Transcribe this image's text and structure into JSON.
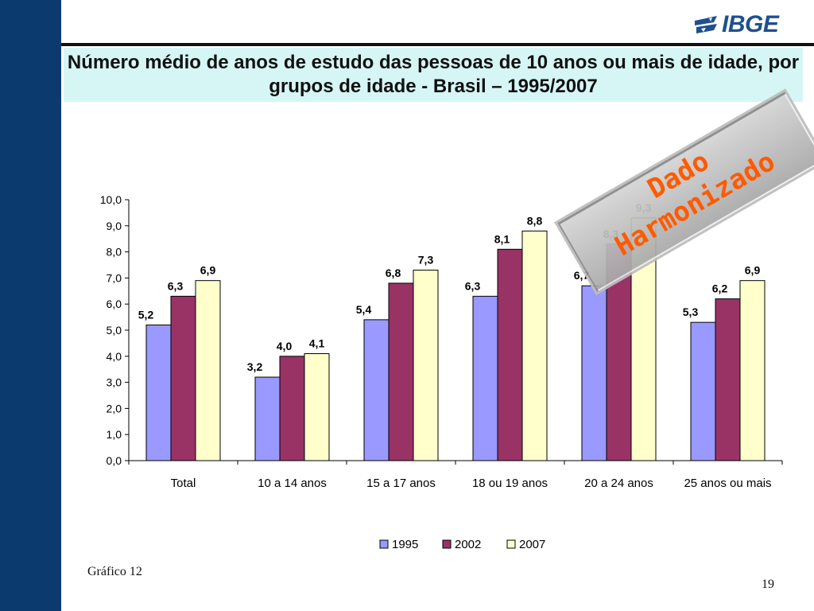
{
  "header": {
    "title": "Número médio de anos de estudo das pessoas de 10 anos ou mais de idade, por grupos de idade - Brasil – 1995/2007",
    "logo_text": "IBGE"
  },
  "footer": {
    "caption": "Gráfico 12",
    "page_number": "19"
  },
  "stamp": {
    "line1": "Dado",
    "line2": "Harmonizado"
  },
  "colors": {
    "sidebar": "#0b3a6e",
    "title_bg": "#d6f6f6",
    "series_1995": "#9999ff",
    "series_2002": "#993366",
    "series_2007": "#ffffcc",
    "stamp_text": "#ff5a00"
  },
  "chart_data": {
    "type": "bar",
    "title": "Número médio de anos de estudo das pessoas de 10 anos ou mais de idade, por grupos de idade - Brasil – 1995/2007",
    "xlabel": "",
    "ylabel": "",
    "ylim": [
      0,
      10
    ],
    "yticks": [
      "0,0",
      "1,0",
      "2,0",
      "3,0",
      "4,0",
      "5,0",
      "6,0",
      "7,0",
      "8,0",
      "9,0",
      "10,0"
    ],
    "categories": [
      "Total",
      "10 a 14 anos",
      "15 a 17 anos",
      "18 ou 19 anos",
      "20 a 24 anos",
      "25 anos ou mais"
    ],
    "series": [
      {
        "name": "1995",
        "color": "#9999ff",
        "values": [
          5.2,
          3.2,
          5.4,
          6.3,
          6.7,
          5.3
        ],
        "labels": [
          "5,2",
          "3,2",
          "5,4",
          "6,3",
          "6,7",
          "5,3"
        ]
      },
      {
        "name": "2002",
        "color": "#993366",
        "values": [
          6.3,
          4.0,
          6.8,
          8.1,
          8.3,
          6.2
        ],
        "labels": [
          "6,3",
          "4,0",
          "6,8",
          "8,1",
          "8,3",
          "6,2"
        ]
      },
      {
        "name": "2007",
        "color": "#ffffcc",
        "values": [
          6.9,
          4.1,
          7.3,
          8.8,
          9.3,
          6.9
        ],
        "labels": [
          "6,9",
          "4,1",
          "7,3",
          "8,8",
          "9,3",
          "6,9"
        ]
      }
    ],
    "grid": false,
    "legend": "bottom"
  }
}
